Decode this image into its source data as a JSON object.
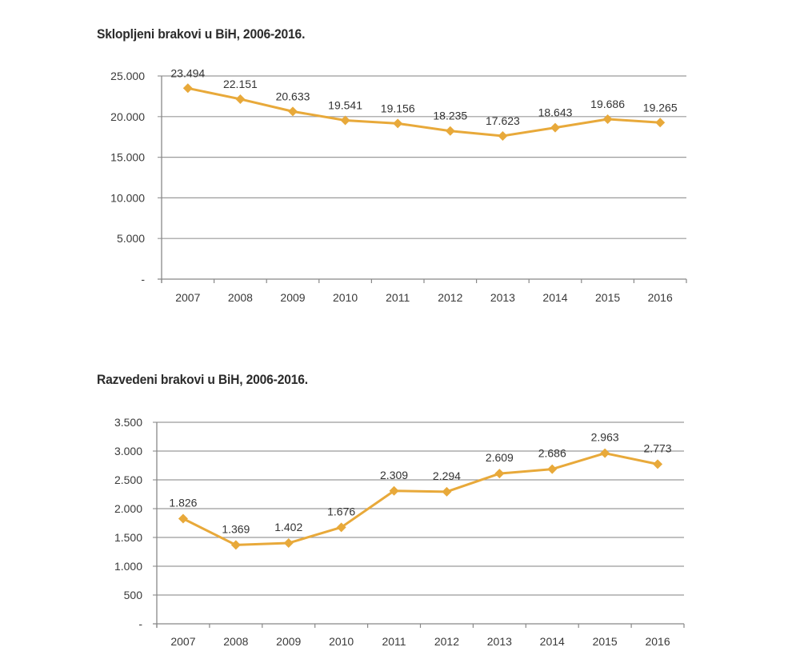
{
  "colors": {
    "line": "#E8A93A",
    "marker": "#E8A93A",
    "grid": "#9a9a9a",
    "axis": "#888888",
    "text": "#333333"
  },
  "chart_data": [
    {
      "type": "line",
      "title": "Sklopljeni brakovi u BiH, 2006-2016.",
      "xlabel": "",
      "ylabel": "",
      "categories": [
        "2007",
        "2008",
        "2009",
        "2010",
        "2011",
        "2012",
        "2013",
        "2014",
        "2015",
        "2016"
      ],
      "series": [
        {
          "name": "Sklopljeni brakovi",
          "values": [
            23494,
            22151,
            20633,
            19541,
            19156,
            18235,
            17623,
            18643,
            19686,
            19265
          ],
          "labels": [
            "23.494",
            "22.151",
            "20.633",
            "19.541",
            "19.156",
            "18.235",
            "17.623",
            "18.643",
            "19.686",
            "19.265"
          ]
        }
      ],
      "ylim": [
        0,
        25000
      ],
      "yticks": [
        0,
        5000,
        10000,
        15000,
        20000,
        25000
      ],
      "ytick_labels": [
        "-",
        "5.000",
        "10.000",
        "15.000",
        "20.000",
        "25.000"
      ],
      "grid": true,
      "legend": "none",
      "marker": "diamond"
    },
    {
      "type": "line",
      "title": "Razvedeni brakovi u BiH, 2006-2016.",
      "xlabel": "",
      "ylabel": "",
      "categories": [
        "2007",
        "2008",
        "2009",
        "2010",
        "2011",
        "2012",
        "2013",
        "2014",
        "2015",
        "2016"
      ],
      "series": [
        {
          "name": "Razvedeni brakovi",
          "values": [
            1826,
            1369,
            1402,
            1676,
            2309,
            2294,
            2609,
            2686,
            2963,
            2773
          ],
          "labels": [
            "1.826",
            "1.369",
            "1.402",
            "1.676",
            "2.309",
            "2.294",
            "2.609",
            "2.686",
            "2.963",
            "2.773"
          ]
        }
      ],
      "ylim": [
        0,
        3500
      ],
      "yticks": [
        0,
        500,
        1000,
        1500,
        2000,
        2500,
        3000,
        3500
      ],
      "ytick_labels": [
        "-",
        "500",
        "1.000",
        "1.500",
        "2.000",
        "2.500",
        "3.000",
        "3.500"
      ],
      "grid": true,
      "legend": "none",
      "marker": "diamond"
    }
  ]
}
